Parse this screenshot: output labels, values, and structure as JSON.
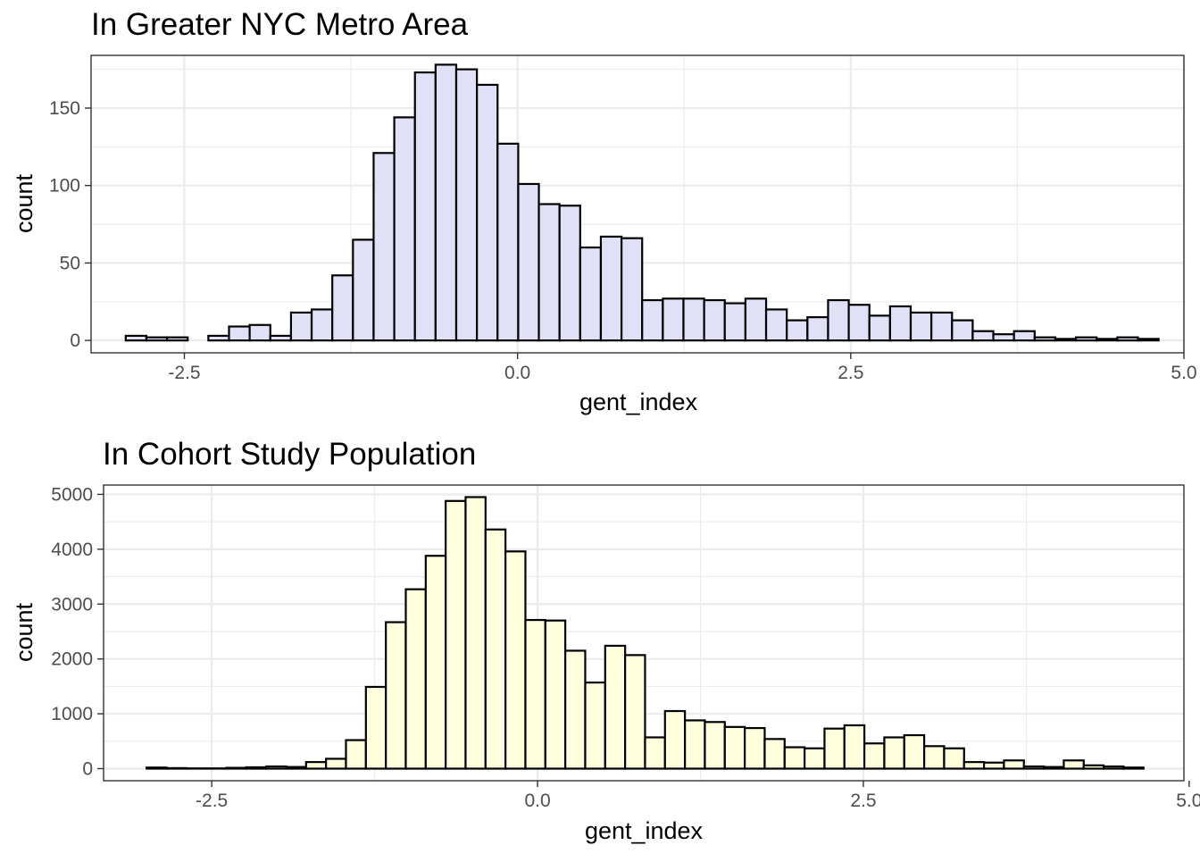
{
  "chart_data": [
    {
      "type": "bar",
      "title": "In Greater NYC Metro Area",
      "xlabel": "gent_index",
      "ylabel": "count",
      "fill_color": "#e0e0f7",
      "xlim": [
        -3.2,
        5.0
      ],
      "ylim": [
        -8,
        184
      ],
      "x_ticks": [
        -2.5,
        0.0,
        2.5,
        5.0
      ],
      "x_tick_labels": [
        "-2.5",
        "0.0",
        "2.5",
        "5.0"
      ],
      "y_ticks": [
        0,
        50,
        100,
        150
      ],
      "y_tick_labels": [
        "0",
        "50",
        "100",
        "150"
      ],
      "grid": true,
      "bin_start": -2.94,
      "bin_width": 0.155,
      "values": [
        3,
        2,
        2,
        0,
        3,
        9,
        10,
        3,
        18,
        20,
        42,
        65,
        121,
        144,
        173,
        178,
        175,
        165,
        127,
        101,
        88,
        87,
        60,
        67,
        66,
        26,
        27,
        27,
        26,
        24,
        27,
        20,
        13,
        15,
        26,
        23,
        16,
        22,
        18,
        18,
        13,
        6,
        4,
        6,
        2,
        1,
        2,
        1,
        2,
        1
      ]
    },
    {
      "type": "bar",
      "title": "In Cohort Study Population",
      "xlabel": "gent_index",
      "ylabel": "count",
      "fill_color": "#ffffdd",
      "xlim": [
        -3.33,
        4.96
      ],
      "ylim": [
        -220,
        5170
      ],
      "x_ticks": [
        -2.5,
        0.0,
        2.5,
        5.0
      ],
      "x_tick_labels": [
        "-2.5",
        "0.0",
        "2.5",
        "5.0"
      ],
      "y_ticks": [
        0,
        1000,
        2000,
        3000,
        4000,
        5000
      ],
      "y_tick_labels": [
        "0",
        "1000",
        "2000",
        "3000",
        "4000",
        "5000"
      ],
      "grid": true,
      "bin_start": -3.0,
      "bin_width": 0.153,
      "values": [
        20,
        10,
        5,
        5,
        15,
        25,
        40,
        30,
        120,
        180,
        520,
        1490,
        2670,
        3270,
        3880,
        4880,
        4950,
        4360,
        3960,
        2710,
        2700,
        2150,
        1570,
        2240,
        2070,
        570,
        1050,
        880,
        850,
        760,
        740,
        540,
        390,
        370,
        730,
        790,
        460,
        570,
        610,
        410,
        370,
        120,
        110,
        150,
        40,
        30,
        150,
        60,
        40,
        20
      ]
    }
  ]
}
